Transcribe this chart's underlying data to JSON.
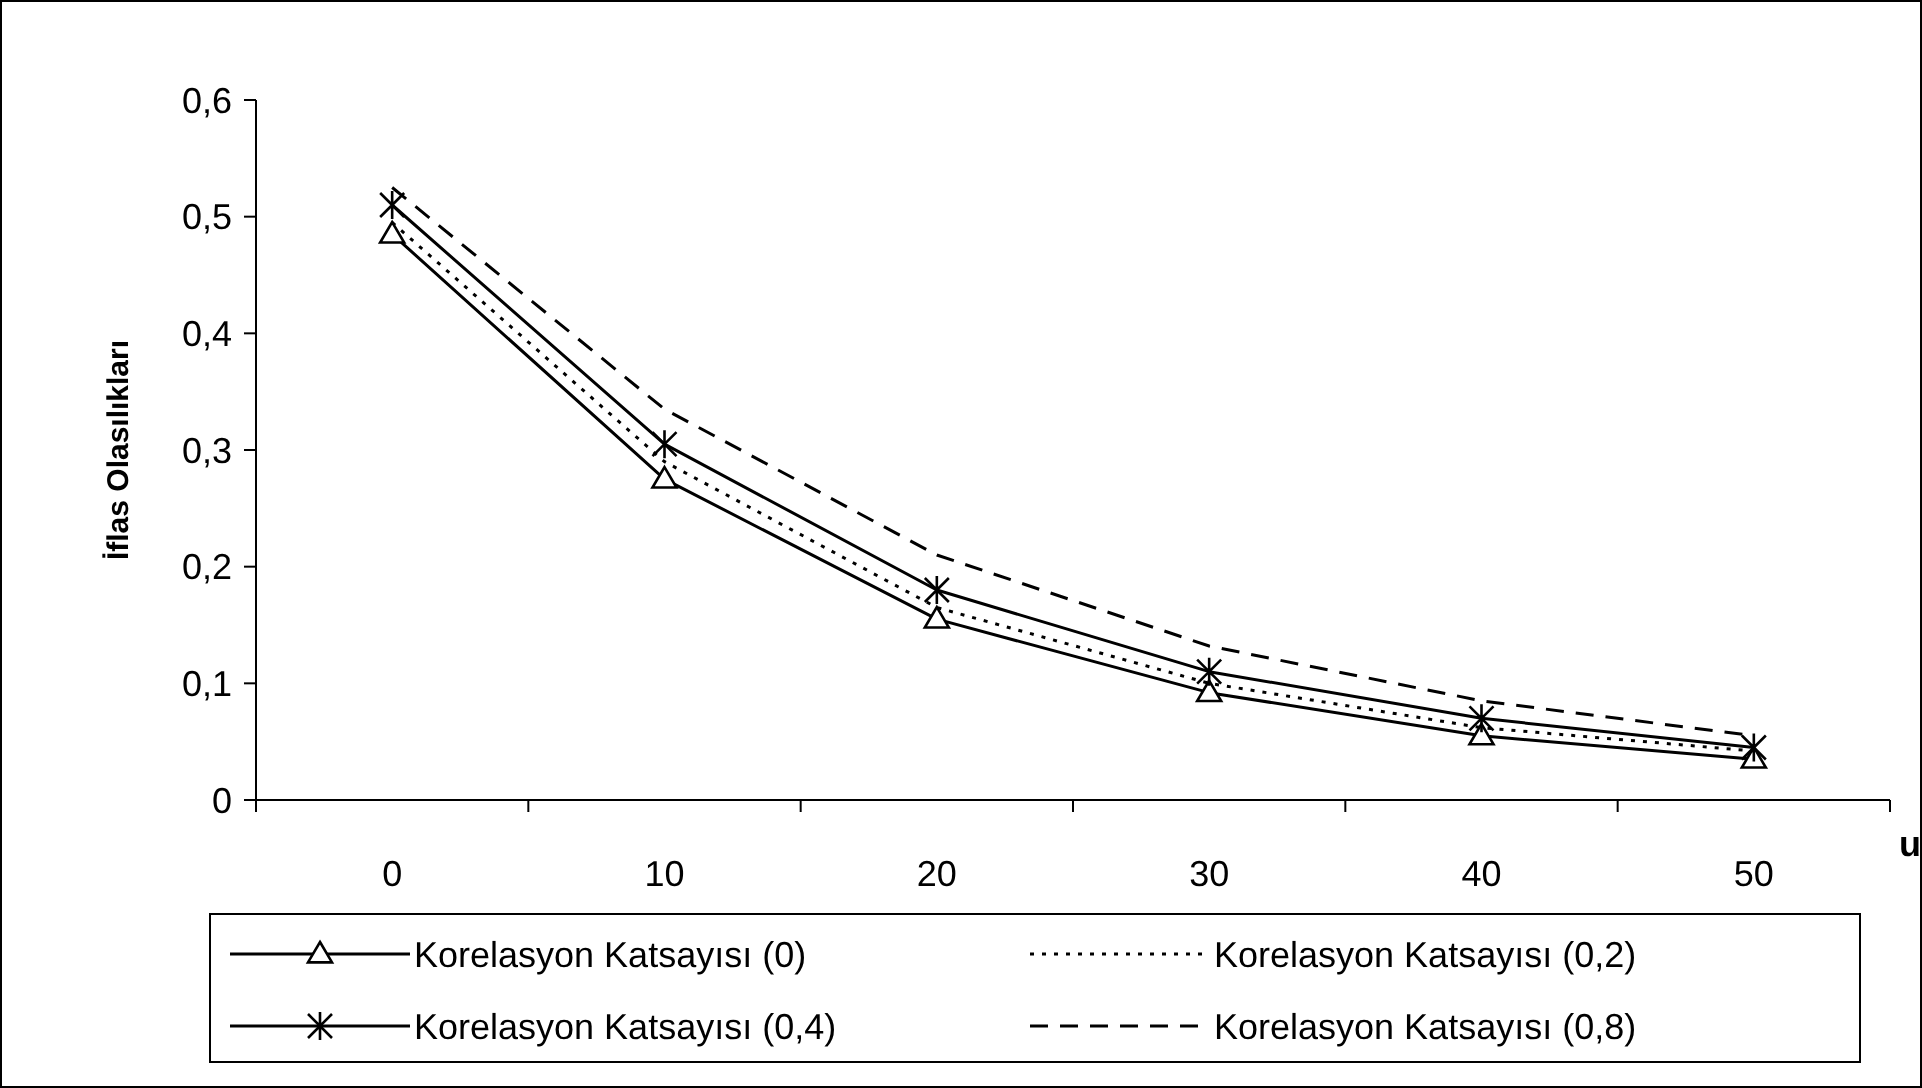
{
  "chart_data": {
    "type": "line",
    "xlabel": "u",
    "ylabel": "İflas Olasılıkları",
    "categories": [
      "0",
      "10",
      "20",
      "30",
      "40",
      "50"
    ],
    "ylim": [
      0,
      0.6
    ],
    "yticks": [
      {
        "value": 0,
        "label": "0"
      },
      {
        "value": 0.1,
        "label": "0,1"
      },
      {
        "value": 0.2,
        "label": "0,2"
      },
      {
        "value": 0.3,
        "label": "0,3"
      },
      {
        "value": 0.4,
        "label": "0,4"
      },
      {
        "value": 0.5,
        "label": "0,5"
      },
      {
        "value": 0.6,
        "label": "0,6"
      }
    ],
    "grid": false,
    "legend": "bottom",
    "series": [
      {
        "name": "Korelasyon Katsayısı (0)",
        "color": "#000000",
        "marker": "triangle",
        "line_style": "solid",
        "values": [
          0.485,
          0.275,
          0.155,
          0.092,
          0.055,
          0.035
        ]
      },
      {
        "name": "Korelasyon Katsayısı (0,2)",
        "color": "#000000",
        "marker": "none",
        "line_style": "dotted",
        "values": [
          0.495,
          0.29,
          0.165,
          0.1,
          0.062,
          0.042
        ]
      },
      {
        "name": "Korelasyon Katsayısı (0,4)",
        "color": "#000000",
        "marker": "cross",
        "line_style": "solid",
        "values": [
          0.51,
          0.305,
          0.18,
          0.11,
          0.07,
          0.045
        ]
      },
      {
        "name": "Korelasyon Katsayısı (0,8)",
        "color": "#000000",
        "marker": "none",
        "line_style": "dashed",
        "values": [
          0.525,
          0.335,
          0.21,
          0.132,
          0.085,
          0.055
        ]
      }
    ]
  }
}
